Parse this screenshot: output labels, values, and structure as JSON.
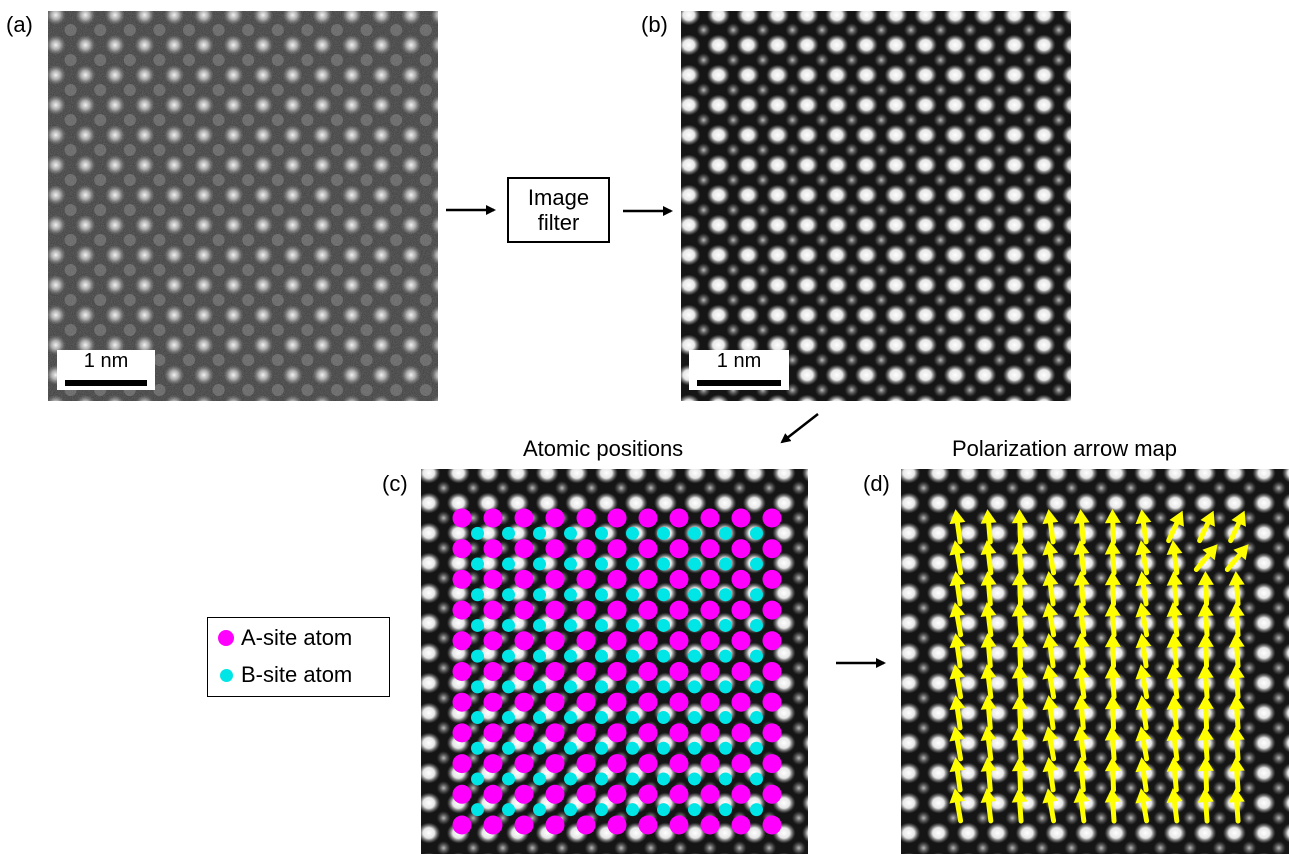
{
  "panels": {
    "a": {
      "label": "(a)",
      "scalebar": "1 nm"
    },
    "b": {
      "label": "(b)",
      "scalebar": "1 nm"
    },
    "c": {
      "label": "(c)",
      "heading": "Atomic positions"
    },
    "d": {
      "label": "(d)",
      "heading": "Polarization arrow map"
    }
  },
  "filter_box": {
    "line1": "Image",
    "line2": "filter"
  },
  "legend": {
    "a_site": {
      "label": "A-site atom",
      "color": "#ff00ff"
    },
    "b_site": {
      "label": "B-site atom",
      "color": "#00e5e5"
    }
  },
  "colors": {
    "arrow": "#ffff00",
    "flow_arrow": "#000000"
  }
}
